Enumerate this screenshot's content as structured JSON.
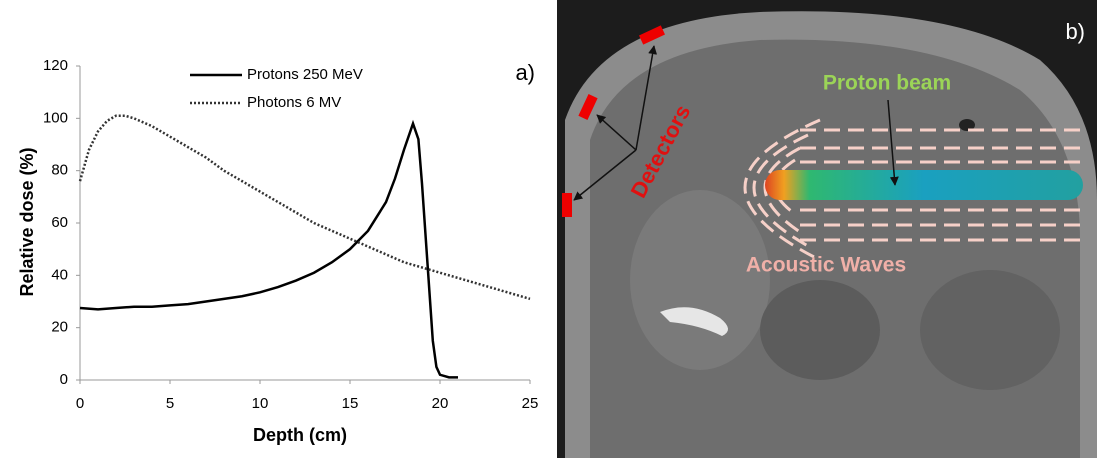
{
  "chart_data": {
    "type": "line",
    "xlabel": "Depth (cm)",
    "ylabel": "Relative dose (%)",
    "annotations": [
      "a)"
    ],
    "xlim": [
      0,
      25
    ],
    "xticks": [
      0,
      5,
      10,
      15,
      20,
      25
    ],
    "ylim": [
      0,
      120
    ],
    "yticks": [
      0,
      20,
      40,
      60,
      80,
      100,
      120
    ],
    "grid": false,
    "legend": "upper center",
    "series": [
      {
        "name": "Protons 250 MeV",
        "color": "#000000",
        "style": "solid",
        "x": [
          0,
          1,
          2,
          3,
          4,
          5,
          6,
          7,
          8,
          9,
          10,
          11,
          12,
          13,
          14,
          15,
          16,
          17,
          17.5,
          18,
          18.5,
          18.8,
          19,
          19.3,
          19.6,
          19.8,
          20,
          20.5,
          21
        ],
        "values": [
          27.5,
          27,
          27.5,
          28,
          28,
          28.5,
          29,
          30,
          31,
          32,
          33.5,
          35.5,
          38,
          41,
          45,
          50,
          57,
          68,
          77,
          88,
          98,
          92,
          75,
          45,
          15,
          5,
          2,
          1,
          1
        ]
      },
      {
        "name": "Photons 6 MV",
        "color": "#333333",
        "style": "dotted",
        "x": [
          0,
          0.5,
          1,
          1.5,
          2,
          2.5,
          3,
          4,
          5,
          6,
          7,
          8,
          9,
          10,
          11,
          12,
          13,
          14,
          15,
          16,
          17,
          18,
          19,
          20,
          21,
          22,
          23,
          24,
          25
        ],
        "values": [
          76,
          88,
          95,
          99,
          101,
          101,
          100,
          97,
          93,
          89,
          85,
          80,
          76,
          72,
          68,
          64,
          60,
          57,
          54,
          51,
          48,
          45,
          43,
          41,
          39,
          37,
          35,
          33,
          31
        ]
      }
    ]
  },
  "panel_b": {
    "label": "b)",
    "beam": "Proton beam",
    "detectors": "Detectors",
    "waves": "Acoustic Waves"
  }
}
